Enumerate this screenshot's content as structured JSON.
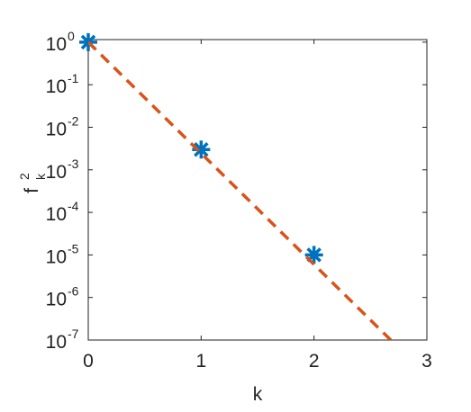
{
  "chart_data": {
    "type": "line",
    "xlabel": "k",
    "ylabel": {
      "base": "f",
      "sup": "2",
      "sub": "k"
    },
    "log_y": true,
    "xlim": [
      0,
      3
    ],
    "xticks": [
      0,
      1,
      2,
      3
    ],
    "ylim": [
      1e-07,
      1.15
    ],
    "yticks": [
      {
        "value": 1e-07,
        "label": [
          "10",
          "-7"
        ]
      },
      {
        "value": 1e-06,
        "label": [
          "10",
          "-6"
        ]
      },
      {
        "value": 1e-05,
        "label": [
          "10",
          "-5"
        ]
      },
      {
        "value": 0.0001,
        "label": [
          "10",
          "-4"
        ]
      },
      {
        "value": 0.001,
        "label": [
          "10",
          "-3"
        ]
      },
      {
        "value": 0.01,
        "label": [
          "10",
          "-2"
        ]
      },
      {
        "value": 0.1,
        "label": [
          "10",
          "-1"
        ]
      },
      {
        "value": 1,
        "label": [
          "10",
          "0"
        ]
      }
    ],
    "series": [
      {
        "style": "markers",
        "marker": "asterisk",
        "color": "#0072BD",
        "x": [
          0,
          1,
          2
        ],
        "values": [
          1,
          0.003,
          1e-05
        ]
      },
      {
        "style": "dashed",
        "color": "#D95319",
        "x": [
          0,
          2.68
        ],
        "values": [
          1,
          1e-07
        ]
      }
    ]
  }
}
